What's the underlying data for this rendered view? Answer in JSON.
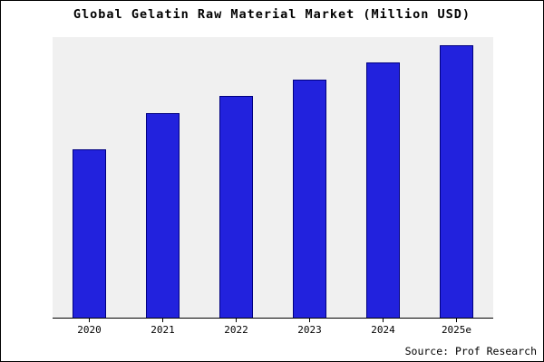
{
  "chart": {
    "title": "Global Gelatin Raw Material Market (Million USD)",
    "source": "Source: Prof Research"
  },
  "chart_data": {
    "type": "bar",
    "title": "Global Gelatin Raw Material Market (Million USD)",
    "categories": [
      "2020",
      "2021",
      "2022",
      "2023",
      "2024",
      "2025e"
    ],
    "values": [
      60,
      73,
      79,
      85,
      91,
      97
    ],
    "xlabel": "",
    "ylabel": "",
    "ylim": [
      0,
      100
    ],
    "units": "relative bar heights (% of plot height); no numeric y-axis labels shown",
    "grid": false,
    "legend": false,
    "y_axis_visible": false,
    "bar_color": "#2222dd",
    "bar_border_color": "#000080",
    "plot_background": "#f0f0f0",
    "frame_border_color": "#000000"
  }
}
